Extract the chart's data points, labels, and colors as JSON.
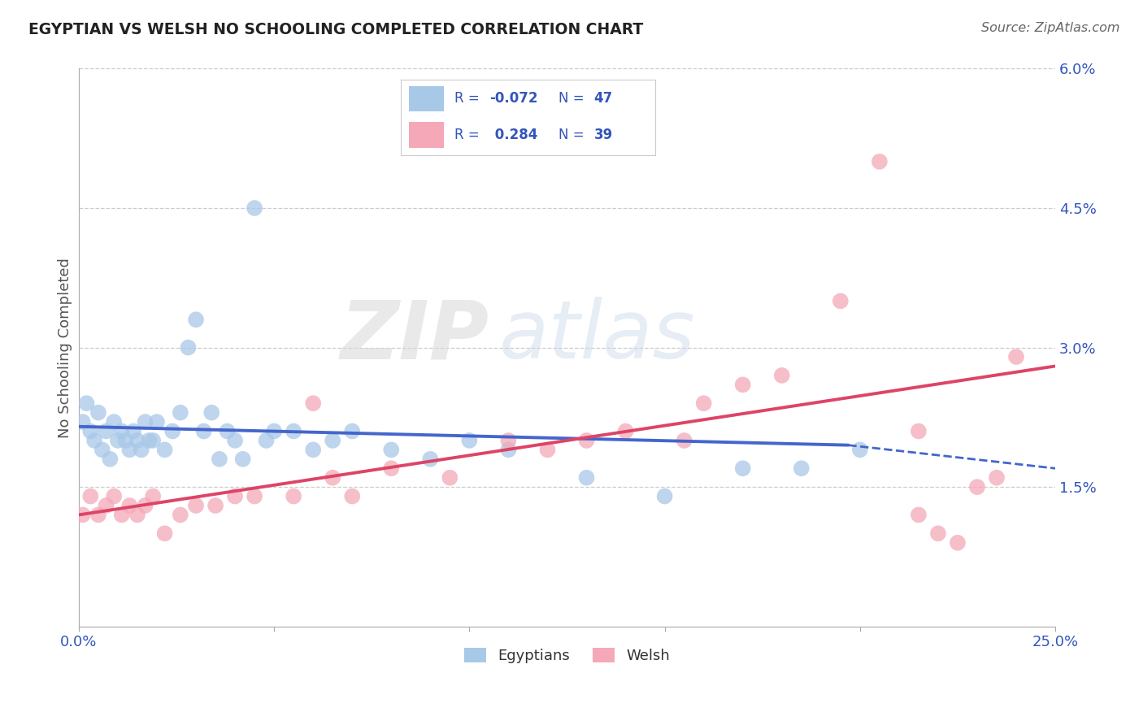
{
  "title": "EGYPTIAN VS WELSH NO SCHOOLING COMPLETED CORRELATION CHART",
  "source": "Source: ZipAtlas.com",
  "ylabel": "No Schooling Completed",
  "xlim": [
    0,
    0.25
  ],
  "ylim": [
    0,
    0.06
  ],
  "yticks_right": [
    0.015,
    0.03,
    0.045,
    0.06
  ],
  "ytick_right_labels": [
    "1.5%",
    "3.0%",
    "4.5%",
    "6.0%"
  ],
  "egyptian_color": "#a8c8e8",
  "welsh_color": "#f4a8b8",
  "trend_egyptian_color": "#4466cc",
  "trend_welsh_color": "#dd4466",
  "background_color": "#ffffff",
  "grid_color": "#cccccc",
  "watermark_zip": "ZIP",
  "watermark_atlas": "atlas",
  "text_color": "#3355bb",
  "egyptian_x": [
    0.001,
    0.002,
    0.003,
    0.004,
    0.005,
    0.006,
    0.007,
    0.008,
    0.009,
    0.01,
    0.011,
    0.012,
    0.013,
    0.014,
    0.015,
    0.016,
    0.017,
    0.018,
    0.019,
    0.02,
    0.022,
    0.024,
    0.026,
    0.028,
    0.03,
    0.032,
    0.034,
    0.036,
    0.038,
    0.04,
    0.042,
    0.045,
    0.048,
    0.05,
    0.055,
    0.06,
    0.065,
    0.07,
    0.08,
    0.09,
    0.1,
    0.11,
    0.13,
    0.15,
    0.17,
    0.185,
    0.2
  ],
  "egyptian_y": [
    0.022,
    0.024,
    0.021,
    0.02,
    0.023,
    0.019,
    0.021,
    0.018,
    0.022,
    0.02,
    0.021,
    0.02,
    0.019,
    0.021,
    0.02,
    0.019,
    0.022,
    0.02,
    0.02,
    0.022,
    0.019,
    0.021,
    0.023,
    0.03,
    0.033,
    0.021,
    0.023,
    0.018,
    0.021,
    0.02,
    0.018,
    0.045,
    0.02,
    0.021,
    0.021,
    0.019,
    0.02,
    0.021,
    0.019,
    0.018,
    0.02,
    0.019,
    0.016,
    0.014,
    0.017,
    0.017,
    0.019
  ],
  "welsh_x": [
    0.001,
    0.003,
    0.005,
    0.007,
    0.009,
    0.011,
    0.013,
    0.015,
    0.017,
    0.019,
    0.022,
    0.026,
    0.03,
    0.035,
    0.04,
    0.045,
    0.055,
    0.06,
    0.065,
    0.07,
    0.08,
    0.095,
    0.11,
    0.12,
    0.13,
    0.14,
    0.155,
    0.16,
    0.17,
    0.18,
    0.195,
    0.205,
    0.215,
    0.215,
    0.22,
    0.225,
    0.23,
    0.235,
    0.24
  ],
  "welsh_y": [
    0.012,
    0.014,
    0.012,
    0.013,
    0.014,
    0.012,
    0.013,
    0.012,
    0.013,
    0.014,
    0.01,
    0.012,
    0.013,
    0.013,
    0.014,
    0.014,
    0.014,
    0.024,
    0.016,
    0.014,
    0.017,
    0.016,
    0.02,
    0.019,
    0.02,
    0.021,
    0.02,
    0.024,
    0.026,
    0.027,
    0.035,
    0.05,
    0.021,
    0.012,
    0.01,
    0.009,
    0.015,
    0.016,
    0.029
  ],
  "trend_eg_x0": 0.0,
  "trend_eg_x1": 0.197,
  "trend_eg_y0": 0.0215,
  "trend_eg_y1": 0.0195,
  "trend_eg_xdash0": 0.197,
  "trend_eg_xdash1": 0.25,
  "trend_eg_ydash0": 0.0195,
  "trend_eg_ydash1": 0.017,
  "trend_welsh_x0": 0.0,
  "trend_welsh_x1": 0.25,
  "trend_welsh_y0": 0.012,
  "trend_welsh_y1": 0.028
}
